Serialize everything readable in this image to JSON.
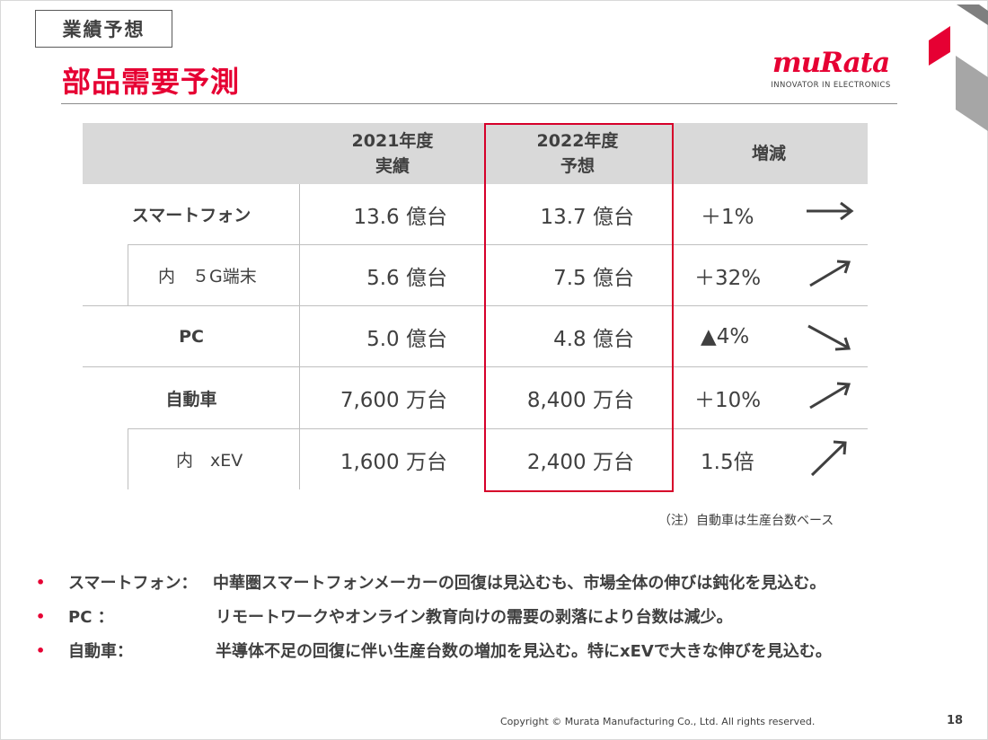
{
  "header": {
    "section_tag": "業績予想",
    "title": "部品需要予測"
  },
  "logo": {
    "wordmark": "muRata",
    "tagline": "INNOVATOR IN ELECTRONICS"
  },
  "table": {
    "columns": [
      {
        "line1": "",
        "line2": ""
      },
      {
        "line1": "2021年度",
        "line2": "実績"
      },
      {
        "line1": "2022年度",
        "line2": "予想"
      },
      {
        "line1": "増減",
        "line2": ""
      }
    ],
    "rows": [
      {
        "label": "スマートフォン",
        "fy2021": "13.6 億台",
        "fy2022": "13.7 億台",
        "change": "＋1%",
        "trend_icon": "arrow-right-icon"
      },
      {
        "label": "内　５G端末",
        "fy2021": "5.6 億台",
        "fy2022": "7.5 億台",
        "change": "＋32%",
        "trend_icon": "arrow-up-right-icon"
      },
      {
        "label": "PC",
        "fy2021": "5.0 億台",
        "fy2022": "4.8 億台",
        "change": "▲4%",
        "trend_icon": "arrow-down-right-icon"
      },
      {
        "label": "自動車",
        "fy2021": "7,600 万台",
        "fy2022": "8,400 万台",
        "change": "＋10%",
        "trend_icon": "arrow-up-right-icon"
      },
      {
        "label": "内　xEV",
        "fy2021": "1,600 万台",
        "fy2022": "2,400 万台",
        "change": "1.5倍",
        "trend_icon": "arrow-up-right-steep-icon"
      }
    ],
    "note": "（注）自動車は生産台数ベース"
  },
  "bullets": [
    {
      "label": "スマートフォン：",
      "text": "中華圏スマートフォンメーカーの回復は見込むも、市場全体の伸びは鈍化を見込む。"
    },
    {
      "label": "PC ：",
      "text": "リモートワークやオンライン教育向けの需要の剥落により台数は減少。"
    },
    {
      "label": "自動車：",
      "text": "半導体不足の回復に伴い生産台数の増加を見込む。特にxEVで大きな伸びを見込む。"
    }
  ],
  "footer": {
    "copyright": "Copyright © Murata Manufacturing Co., Ltd. All rights reserved.",
    "page": "18"
  },
  "colors": {
    "brand_red": "#e60033",
    "highlight_border": "#d6002a",
    "header_gray": "#d9d9d9"
  }
}
